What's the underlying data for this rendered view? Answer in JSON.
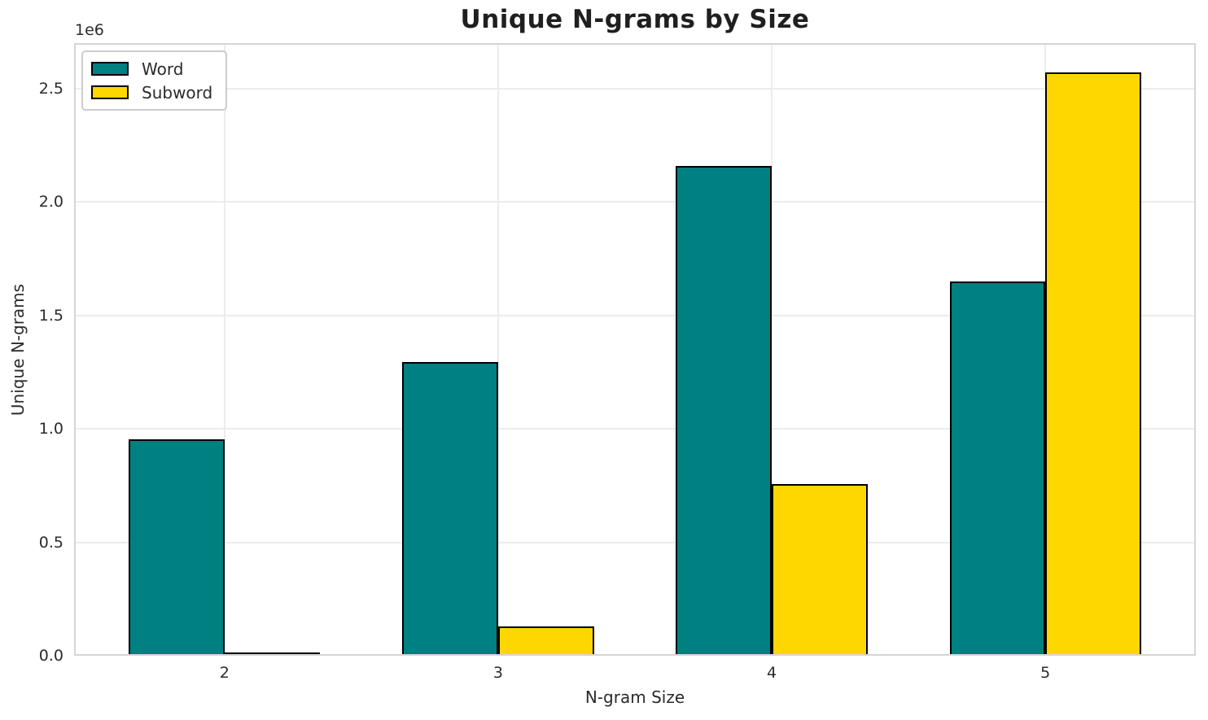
{
  "chart_data": {
    "type": "bar",
    "title": "Unique N-grams by Size",
    "xlabel": "N-gram Size",
    "ylabel": "Unique N-grams",
    "categories": [
      2,
      3,
      4,
      5
    ],
    "xtick_labels": [
      "2",
      "3",
      "4",
      "5"
    ],
    "series": [
      {
        "name": "Word",
        "color": "#008080",
        "values": [
          955000,
          1295000,
          2160000,
          1650000
        ]
      },
      {
        "name": "Subword",
        "color": "#FFD700",
        "values": [
          15000,
          130000,
          755000,
          2570000
        ]
      }
    ],
    "bar_width": 0.35,
    "bar_edge_color": "#000000",
    "xlim": [
      1.45,
      5.55
    ],
    "ylim": [
      0,
      2700000
    ],
    "yticks": {
      "values": [
        0,
        500000,
        1000000,
        1500000,
        2000000,
        2500000
      ],
      "labels": [
        "0.0",
        "0.5",
        "1.0",
        "1.5",
        "2.0",
        "2.5"
      ],
      "offset_text": "1e6"
    },
    "grid": "both",
    "legend": {
      "position": "upper left",
      "entries": [
        "Word",
        "Subword"
      ]
    }
  },
  "colors": {
    "background": "#ffffff",
    "grid": "#ececec",
    "spine": "#d5d5d5",
    "tick_text": "#2b2b2b",
    "title_text": "#1f1f1f",
    "legend_border": "#cccccc"
  }
}
